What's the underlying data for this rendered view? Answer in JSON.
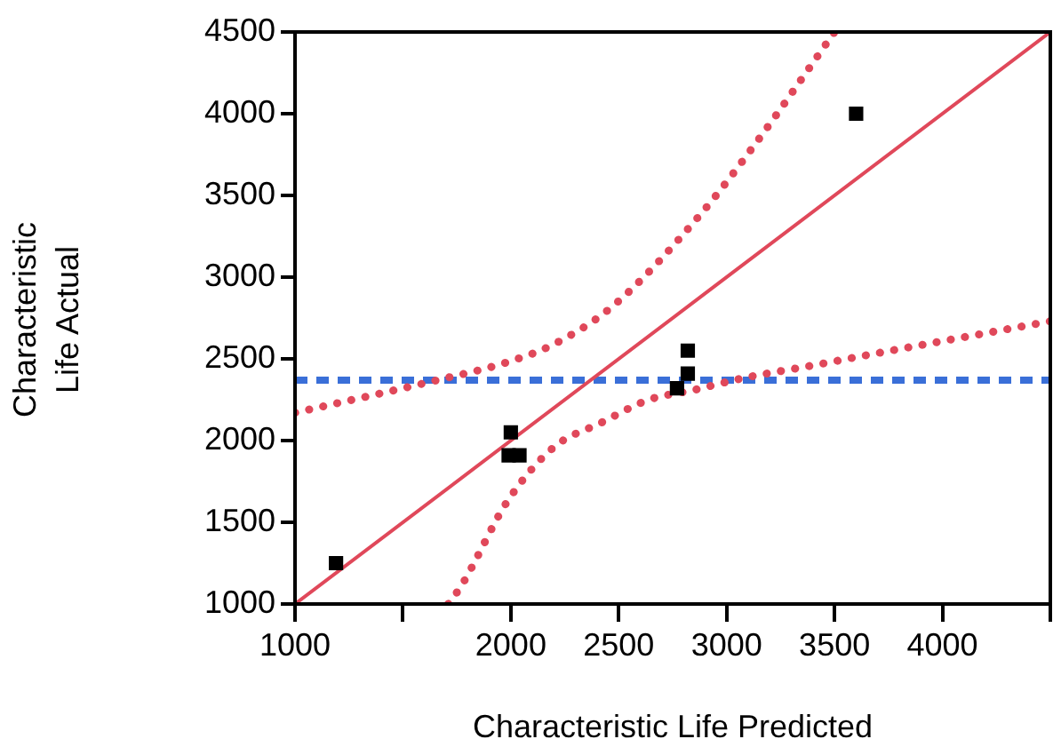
{
  "chart_data": {
    "type": "scatter",
    "xlabel": "Characteristic Life Predicted",
    "ylabel": "Characteristic Life Actual",
    "xlim": [
      1000,
      4500
    ],
    "xticks": [
      1000,
      {
        "value": 1500,
        "label": null
      },
      2000,
      2500,
      3000,
      3500,
      4000,
      {
        "value": 4500,
        "label": null
      }
    ],
    "ylim": [
      1000,
      4500
    ],
    "yticks": [
      1000,
      1500,
      2000,
      2500,
      3000,
      3500,
      4000,
      4500
    ],
    "series": [
      {
        "type": "scatter",
        "color": "#000000",
        "marker": "square",
        "x": [
          1190,
          1990,
          2040,
          2000,
          2770,
          2820,
          2820,
          3600
        ],
        "values": [
          1250,
          1910,
          1910,
          2050,
          2320,
          2410,
          2550,
          4000
        ]
      },
      {
        "type": "line",
        "color": "#e0485a",
        "line_style": "solid",
        "marker": "none",
        "x": [
          1000,
          4500
        ],
        "values": [
          1000,
          4500
        ]
      },
      {
        "type": "line",
        "color": "#e0485a",
        "line_style": "dotted",
        "marker": "none",
        "x": [
          1000,
          1660,
          1985,
          2200,
          2470,
          2870,
          3130,
          3500
        ],
        "values": [
          2170,
          2370,
          2480,
          2590,
          2820,
          3370,
          3810,
          4500
        ]
      },
      {
        "type": "line",
        "color": "#e0485a",
        "line_style": "dotted",
        "marker": "none",
        "x": [
          1710,
          1770,
          1985,
          2200,
          2420,
          2640,
          2850,
          3070,
          3400,
          3720,
          4500
        ],
        "values": [
          1000,
          1110,
          1630,
          1960,
          2110,
          2250,
          2310,
          2380,
          2460,
          2540,
          2730
        ]
      }
    ],
    "ref_lines": [
      {
        "axis": "y",
        "value": 2370,
        "color": "#3a6fd8",
        "line_style": "dashed"
      }
    ]
  }
}
